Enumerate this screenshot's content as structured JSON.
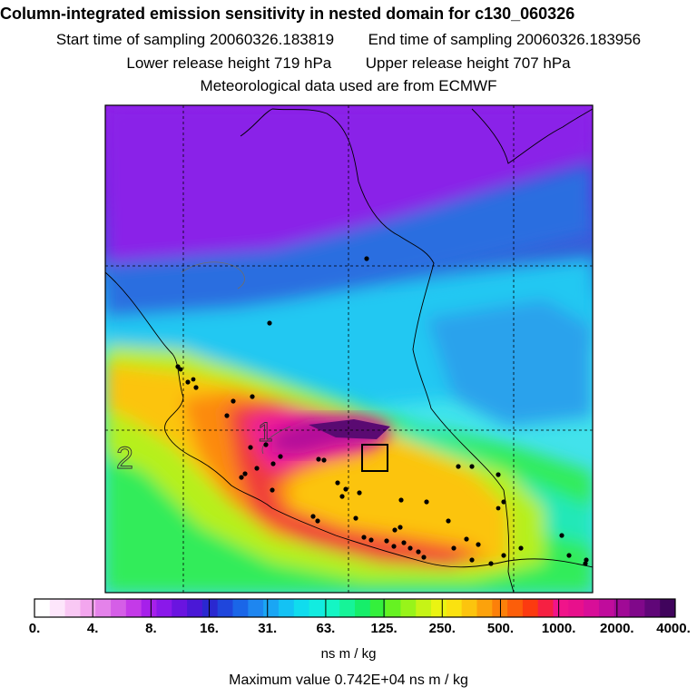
{
  "chart_data": {
    "type": "heatmap",
    "title": "Column-integrated emission sensitivity in nested domain for c130_060326",
    "start_label": "Start time of sampling",
    "start_value": "20060326.183819",
    "end_label": "End time of sampling",
    "end_value": "20060326.183956",
    "lower_label": "Lower release height",
    "lower_value": "719 hPa",
    "upper_label": "Upper release height",
    "upper_value": "707 hPa",
    "met_line": "Meteorological data used are from ECMWF",
    "unit": "ns m / kg",
    "max_line": "Maximum value  0.742E+04 ns m / kg",
    "contour_labels": [
      "1",
      "2"
    ],
    "colorbar_ticks": [
      "0.",
      "4.",
      "8.",
      "16.",
      "31.",
      "63.",
      "125.",
      "250.",
      "500.",
      "1000.",
      "2000.",
      "4000."
    ],
    "colorbar_colors": [
      "#ffffff",
      "#fde6fb",
      "#f9c8f4",
      "#f3a6ee",
      "#e482ea",
      "#d55ee7",
      "#c43ae8",
      "#a620ea",
      "#8a18ea",
      "#6a14e0",
      "#4a18d6",
      "#2a28d0",
      "#1f46dc",
      "#1a66e8",
      "#1e86f0",
      "#1aa6f4",
      "#14c2f4",
      "#10dcee",
      "#12ece0",
      "#14f6c4",
      "#16f498",
      "#16ee6a",
      "#34f03c",
      "#66f222",
      "#98f41a",
      "#c6f416",
      "#eaf412",
      "#fae210",
      "#fcc40e",
      "#fca20c",
      "#fc800a",
      "#fc5e0a",
      "#fc3a10",
      "#f62042",
      "#f0148a",
      "#e8108c",
      "#d80e98",
      "#c00c9c",
      "#a00a96",
      "#80088a",
      "#600678",
      "#40045c"
    ],
    "colorbar_levels": [
      0,
      4,
      8,
      16,
      31,
      63,
      125,
      250,
      500,
      1000,
      2000,
      4000
    ]
  },
  "colors": {
    "frame": "#000000",
    "grid": "#000000",
    "box": "#000000"
  },
  "icons": [
    "release-box-icon"
  ]
}
